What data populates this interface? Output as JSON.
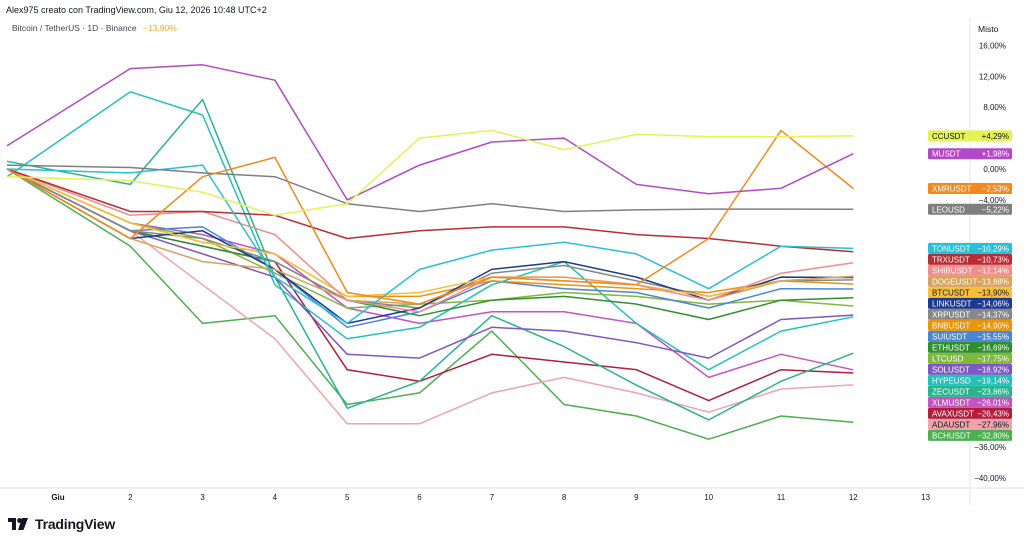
{
  "header": {
    "attribution": "Alex975 creato con TradingView.com, Giu 12, 2026 10:48 UTC+2",
    "symbol": "Bitcoin / TetherUS · 1D · Binance",
    "symbol_change": "−13,90%",
    "scale_mode": "Misto"
  },
  "logo": {
    "text": "TradingView"
  },
  "chart_data": {
    "type": "line",
    "title": "Bitcoin / TetherUS · 1D · Binance",
    "x": [
      "Giu",
      "2",
      "3",
      "4",
      "5",
      "6",
      "7",
      "8",
      "9",
      "10",
      "11",
      "12"
    ],
    "x_ticks": [
      "Giu",
      "2",
      "3",
      "4",
      "5",
      "6",
      "7",
      "8",
      "9",
      "10",
      "11",
      "12",
      "13"
    ],
    "x_range": [
      -0.7,
      13.7
    ],
    "y_ticks": [
      16,
      12,
      8,
      4,
      0,
      -4,
      -36,
      -40
    ],
    "y_tick_labels": [
      "16,00%",
      "12,00%",
      "8,00%",
      "4,00%",
      "0,00%",
      "−4,00%",
      "−36,00%",
      "−40,00%"
    ],
    "ylim": [
      -42,
      17
    ],
    "y_unit": "%",
    "grid": false,
    "series": [
      {
        "name": "CCUSDT",
        "label": "+4,29%",
        "color": "#e3f256",
        "last": 4.29,
        "values": [
          -1,
          -1.5,
          -3,
          -6,
          -4.5,
          4,
          5,
          2.5,
          4.5,
          4.2,
          4.2,
          4.29
        ]
      },
      {
        "name": "MUSDT",
        "label": "+1,98%",
        "color": "#b449c8",
        "last": 1.98,
        "values": [
          3,
          13,
          13.5,
          11.5,
          -4,
          0.5,
          3.5,
          4,
          -2,
          -3.2,
          -2.5,
          1.98
        ]
      },
      {
        "name": "XMRUSDT",
        "label": "−2,53%",
        "color": "#f2891e",
        "last": -2.53,
        "values": [
          0,
          -9,
          -1,
          1.5,
          -16,
          -17.5,
          -14,
          -14.5,
          -15,
          -9,
          5,
          -2.53
        ]
      },
      {
        "name": "LEOUSD",
        "label": "−5,22%",
        "color": "#7f7f7f",
        "last": -5.22,
        "values": [
          0.5,
          0.2,
          -0.5,
          -1,
          -4.5,
          -5.5,
          -4.5,
          -5.5,
          -5.3,
          -5.2,
          -5.2,
          -5.22
        ]
      },
      {
        "name": "TONUSDT",
        "label": "−10,29%",
        "color": "#27c0d6",
        "last": -10.29,
        "values": [
          0,
          -0.5,
          0.5,
          -14,
          -20,
          -13,
          -10.5,
          -9.5,
          -11,
          -15.5,
          -10,
          -10.29
        ]
      },
      {
        "name": "TRXUSDT",
        "label": "−10,73%",
        "color": "#b72d35",
        "last": -10.73,
        "values": [
          0,
          -5.5,
          -5.5,
          -6,
          -9,
          -8,
          -7.5,
          -7.5,
          -8.5,
          -9,
          -10,
          -10.73
        ]
      },
      {
        "name": "SHIBUSDT",
        "label": "−12,14%",
        "color": "#f28c8c",
        "last": -12.14,
        "values": [
          0,
          -6,
          -5.5,
          -8.5,
          -17,
          -18.5,
          -14,
          -14.5,
          -15,
          -17,
          -13.5,
          -12.14
        ]
      },
      {
        "name": "DOGEUSDT",
        "label": "−13,88%",
        "color": "#d8a35f",
        "last": -13.88,
        "values": [
          0,
          -9,
          -12,
          -13,
          -17,
          -17.5,
          -14,
          -14,
          -15,
          -17,
          -14.5,
          -13.88
        ]
      },
      {
        "name": "BTCUSDT",
        "label": "−13,90%",
        "color": "#f7c03a",
        "last": -13.9,
        "values": [
          0,
          -7,
          -9.5,
          -11,
          -16.5,
          -16,
          -14,
          -14,
          -15,
          -16.5,
          -14.5,
          -13.9
        ]
      },
      {
        "name": "LINKUSDT",
        "label": "−14,06%",
        "color": "#1d3a8f",
        "last": -14.06,
        "values": [
          0,
          -9,
          -8,
          -13,
          -20,
          -18,
          -13,
          -12,
          -14,
          -17,
          -14,
          -14.06
        ]
      },
      {
        "name": "XRPUSDT",
        "label": "−14,37%",
        "color": "#888888",
        "last": -14.37,
        "values": [
          0,
          -8,
          -9,
          -12,
          -17,
          -18,
          -13.5,
          -12.5,
          -14.5,
          -16.5,
          -14.5,
          -14.37
        ]
      },
      {
        "name": "BNBUSDT",
        "label": "−14,90%",
        "color": "#e8950c",
        "last": -14.9,
        "values": [
          0,
          -7,
          -9.5,
          -11,
          -16.5,
          -16.5,
          -14.5,
          -15,
          -15.5,
          -16,
          -14.5,
          -14.9
        ]
      },
      {
        "name": "SUIUSDT",
        "label": "−15,55%",
        "color": "#4b85d6",
        "last": -15.55,
        "values": [
          0,
          -8,
          -7.5,
          -13,
          -20.5,
          -18.5,
          -14.5,
          -15.5,
          -16,
          -18,
          -15.5,
          -15.55
        ]
      },
      {
        "name": "ETHUSDT",
        "label": "−16,69%",
        "color": "#2f8f2f",
        "last": -16.69,
        "values": [
          0,
          -8,
          -10,
          -12,
          -17,
          -19,
          -17,
          -16.5,
          -17.5,
          -19.5,
          -17,
          -16.69
        ]
      },
      {
        "name": "LTCUSD",
        "label": "−17,75%",
        "color": "#7fb83c",
        "last": -17.75,
        "values": [
          0,
          -7,
          -9,
          -13.5,
          -18,
          -17.5,
          -17,
          -16,
          -16.5,
          -17.5,
          -17,
          -17.75
        ]
      },
      {
        "name": "SOLUSDT",
        "label": "−18,92%",
        "color": "#7e57c2",
        "last": -18.92,
        "values": [
          0,
          -8,
          -11,
          -14,
          -24,
          -24.5,
          -20.5,
          -21,
          -22.5,
          -24.5,
          -19.5,
          -18.92
        ]
      },
      {
        "name": "HYPEUSD",
        "label": "−19,14%",
        "color": "#22c2b9",
        "last": -19.14,
        "values": [
          -1,
          10,
          7,
          -15,
          -22,
          -20.5,
          -15,
          -12,
          -20,
          -26,
          -21,
          -19.14
        ]
      },
      {
        "name": "ZECUSDT",
        "label": "−23,86%",
        "color": "#2ab38f",
        "last": -23.86,
        "values": [
          1,
          -2,
          9,
          -14,
          -31,
          -27.5,
          -19,
          -23,
          -28,
          -32.5,
          -27.5,
          -23.86
        ]
      },
      {
        "name": "XLMUSDT",
        "label": "−26,01%",
        "color": "#c255c2",
        "last": -26.01,
        "values": [
          0,
          -7,
          -8.5,
          -11,
          -18,
          -20,
          -18.5,
          -18.5,
          -20,
          -27,
          -24,
          -26.01
        ]
      },
      {
        "name": "AVAXUSDT",
        "label": "−26,43%",
        "color": "#b01e3a",
        "last": -26.43,
        "values": [
          0,
          -8,
          -10,
          -12,
          -26,
          -27.5,
          -24,
          -25,
          -26,
          -30,
          -26,
          -26.43
        ]
      },
      {
        "name": "ADAUSDT",
        "label": "−27,96%",
        "color": "#f0a3ae",
        "last": -27.96,
        "values": [
          0,
          -8,
          -15,
          -22,
          -33,
          -33,
          -29,
          -27,
          -29,
          -31.5,
          -28.5,
          -27.96
        ]
      },
      {
        "name": "BCHUSDT",
        "label": "−32,80%",
        "color": "#4caf50",
        "last": -32.8,
        "values": [
          0,
          -10,
          -20,
          -19,
          -30.5,
          -29,
          -21,
          -30.5,
          -32,
          -35,
          -32,
          -32.8
        ]
      }
    ]
  }
}
